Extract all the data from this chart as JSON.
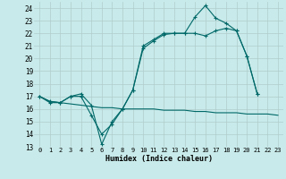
{
  "xlabel": "Humidex (Indice chaleur)",
  "bg_color": "#c8eaea",
  "grid_color": "#b0cccc",
  "line_color": "#006868",
  "xlim": [
    -0.5,
    23.5
  ],
  "ylim": [
    13,
    24.5
  ],
  "yticks": [
    13,
    14,
    15,
    16,
    17,
    18,
    19,
    20,
    21,
    22,
    23,
    24
  ],
  "xticks": [
    0,
    1,
    2,
    3,
    4,
    5,
    6,
    7,
    8,
    9,
    10,
    11,
    12,
    13,
    14,
    15,
    16,
    17,
    18,
    19,
    20,
    21,
    22,
    23
  ],
  "series1_y": [
    17.0,
    16.5,
    16.5,
    17.0,
    17.0,
    15.5,
    14.0,
    14.8,
    16.0,
    17.5,
    20.8,
    21.4,
    21.9,
    22.0,
    22.0,
    22.0,
    21.8,
    22.2,
    22.4,
    22.2,
    20.2,
    17.2,
    null,
    null
  ],
  "series2_y": [
    17.0,
    16.6,
    16.5,
    17.0,
    17.2,
    16.3,
    13.2,
    15.0,
    16.0,
    17.5,
    21.0,
    21.5,
    22.0,
    22.0,
    22.0,
    23.3,
    24.2,
    23.2,
    22.8,
    22.2,
    20.2,
    17.2,
    null,
    null
  ],
  "series3_y": [
    17.0,
    16.6,
    16.5,
    16.4,
    16.3,
    16.2,
    16.1,
    16.1,
    16.0,
    16.0,
    16.0,
    16.0,
    15.9,
    15.9,
    15.9,
    15.8,
    15.8,
    15.7,
    15.7,
    15.7,
    15.6,
    15.6,
    15.6,
    15.5
  ]
}
